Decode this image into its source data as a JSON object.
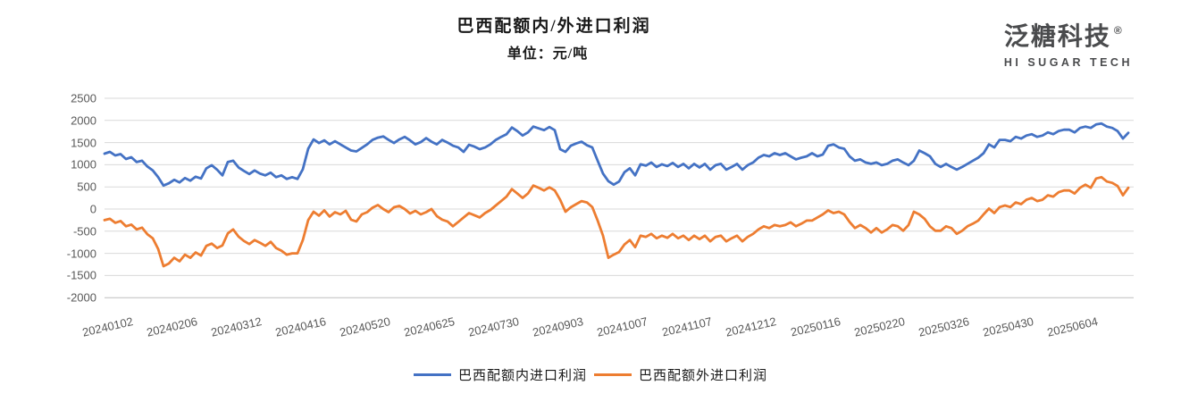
{
  "header": {
    "title": "巴西配额内/外进口利润",
    "unit_label": "单位：元/吨"
  },
  "logo": {
    "cn": "泛糖科技",
    "reg": "®",
    "en": "HI SUGAR TECH"
  },
  "colors": {
    "series_in_quota": "#4472C4",
    "series_out_quota": "#ED7D31",
    "gridline": "#D9D9D9",
    "axis_bottom": "#BFBFBF",
    "axis_text": "#595959",
    "logo_text": "#4A4B4D"
  },
  "chart_data": {
    "type": "line",
    "title": "巴西配额内/外进口利润",
    "unit": "元/吨",
    "grid": true,
    "legend_position": "bottom",
    "ylim": [
      -2000,
      2500
    ],
    "y_ticks": [
      2500,
      2000,
      1500,
      1000,
      500,
      0,
      -500,
      -1000,
      -1500,
      -2000
    ],
    "x_tick_labels": [
      "20240102",
      "20240206",
      "20240312",
      "20240416",
      "20240520",
      "20240625",
      "20240730",
      "20240903",
      "20241007",
      "20241107",
      "20241212",
      "20250116",
      "20250220",
      "20250326",
      "20250430",
      "20250604"
    ],
    "points_per_tick_interval": 12,
    "series": [
      {
        "name": "巴西配额内进口利润",
        "color": "#4472C4",
        "values": [
          1250,
          1290,
          1210,
          1240,
          1130,
          1170,
          1060,
          1090,
          960,
          870,
          720,
          530,
          580,
          660,
          600,
          700,
          640,
          730,
          690,
          920,
          990,
          890,
          760,
          1060,
          1090,
          940,
          860,
          790,
          870,
          800,
          760,
          820,
          720,
          760,
          680,
          720,
          680,
          900,
          1360,
          1570,
          1490,
          1550,
          1460,
          1530,
          1460,
          1390,
          1320,
          1300,
          1380,
          1460,
          1560,
          1610,
          1640,
          1560,
          1490,
          1570,
          1630,
          1550,
          1460,
          1510,
          1600,
          1520,
          1460,
          1560,
          1500,
          1430,
          1390,
          1290,
          1450,
          1410,
          1350,
          1390,
          1460,
          1560,
          1630,
          1690,
          1840,
          1760,
          1660,
          1730,
          1860,
          1820,
          1780,
          1850,
          1780,
          1350,
          1290,
          1430,
          1480,
          1520,
          1440,
          1390,
          1090,
          800,
          630,
          550,
          620,
          830,
          920,
          760,
          1010,
          980,
          1050,
          950,
          1010,
          970,
          1040,
          950,
          1020,
          920,
          1020,
          940,
          1020,
          890,
          990,
          1020,
          890,
          950,
          1020,
          890,
          990,
          1050,
          1160,
          1220,
          1190,
          1260,
          1220,
          1260,
          1190,
          1120,
          1160,
          1190,
          1260,
          1190,
          1230,
          1430,
          1460,
          1390,
          1360,
          1190,
          1090,
          1120,
          1050,
          1020,
          1050,
          990,
          1020,
          1090,
          1120,
          1050,
          990,
          1090,
          1320,
          1260,
          1190,
          1020,
          950,
          1020,
          950,
          890,
          950,
          1020,
          1090,
          1160,
          1260,
          1460,
          1390,
          1560,
          1560,
          1530,
          1630,
          1590,
          1660,
          1690,
          1630,
          1660,
          1730,
          1690,
          1760,
          1790,
          1790,
          1730,
          1830,
          1860,
          1830,
          1910,
          1930,
          1860,
          1830,
          1760,
          1590,
          1720
        ]
      },
      {
        "name": "巴西配额外进口利润",
        "color": "#ED7D31",
        "values": [
          -250,
          -220,
          -310,
          -270,
          -390,
          -350,
          -460,
          -420,
          -570,
          -660,
          -900,
          -1290,
          -1230,
          -1100,
          -1180,
          -1030,
          -1100,
          -980,
          -1050,
          -830,
          -780,
          -880,
          -820,
          -550,
          -460,
          -620,
          -720,
          -790,
          -700,
          -760,
          -830,
          -740,
          -880,
          -940,
          -1030,
          -1000,
          -1000,
          -700,
          -250,
          -60,
          -150,
          -30,
          -170,
          -70,
          -120,
          -40,
          -240,
          -280,
          -120,
          -70,
          30,
          90,
          0,
          -70,
          40,
          70,
          0,
          -100,
          -40,
          -120,
          -70,
          0,
          -160,
          -240,
          -280,
          -390,
          -290,
          -190,
          -90,
          -140,
          -190,
          -90,
          -20,
          80,
          180,
          280,
          450,
          350,
          250,
          350,
          530,
          480,
          420,
          490,
          420,
          210,
          -60,
          40,
          110,
          180,
          150,
          45,
          -260,
          -600,
          -1100,
          -1030,
          -970,
          -800,
          -700,
          -860,
          -600,
          -630,
          -560,
          -660,
          -600,
          -650,
          -560,
          -660,
          -600,
          -700,
          -600,
          -680,
          -600,
          -730,
          -630,
          -600,
          -730,
          -660,
          -600,
          -730,
          -630,
          -560,
          -460,
          -390,
          -430,
          -360,
          -390,
          -360,
          -300,
          -390,
          -330,
          -260,
          -260,
          -190,
          -120,
          -30,
          -90,
          -60,
          -120,
          -290,
          -430,
          -360,
          -430,
          -530,
          -430,
          -530,
          -460,
          -360,
          -390,
          -490,
          -360,
          -60,
          -120,
          -220,
          -390,
          -490,
          -490,
          -390,
          -430,
          -560,
          -490,
          -390,
          -330,
          -260,
          -120,
          10,
          -90,
          45,
          80,
          45,
          150,
          110,
          210,
          250,
          180,
          210,
          310,
          280,
          380,
          420,
          420,
          350,
          480,
          550,
          480,
          690,
          720,
          620,
          590,
          520,
          310,
          480
        ]
      }
    ]
  }
}
